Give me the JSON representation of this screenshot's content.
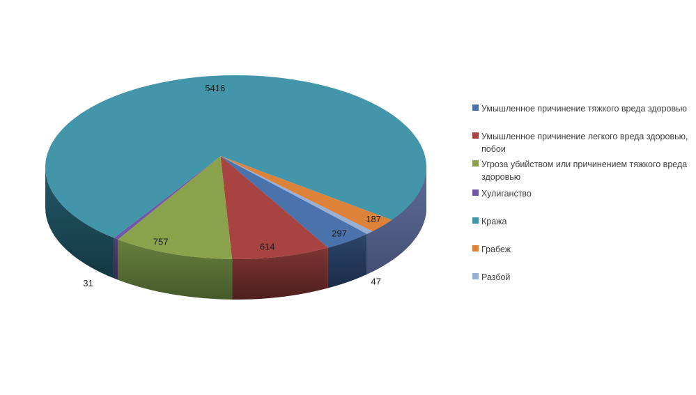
{
  "chart_data": {
    "type": "pie",
    "style": "3d-pie",
    "title": "",
    "legend_position": "right",
    "background_color": "#FFFFFF",
    "data_label_color": "#1A1A1A",
    "legend_text_color": "#3F3F3F",
    "slices": [
      {
        "label": "Умышленное причинение тяжкого вреда здоровью",
        "legend_lines": [
          "Умышленное причинение тяжкого вреда здоровью"
        ],
        "value": 297,
        "color": "#4A72AB",
        "side_top": "#2B4569",
        "side_bottom": "#1B2C49"
      },
      {
        "label": "Умышленное причинение легкого вреда здоровью, побои",
        "legend_lines": [
          "Умышленное причинение легкого вреда здоровью,",
          "побои"
        ],
        "value": 614,
        "color": "#A74441",
        "side_top": "#7E3532",
        "side_bottom": "#4E1F1D"
      },
      {
        "label": "Угроза убийством или причинением тяжкого вреда здоровью",
        "legend_lines": [
          "Угроза убийством или причинением тяжкого вреда",
          "здоровью"
        ],
        "value": 757,
        "color": "#8AA24C",
        "side_top": "#66803C",
        "side_bottom": "#46592A"
      },
      {
        "label": "Хулиганство",
        "legend_lines": [
          "Хулиганство"
        ],
        "value": 31,
        "color": "#6F58A8",
        "side_top": "#4E3F73",
        "side_bottom": "#352A50"
      },
      {
        "label": "Кража",
        "legend_lines": [
          "Кража"
        ],
        "value": 5416,
        "color": "#4396A9",
        "side_top": "#24596A",
        "side_bottom": "#133741"
      },
      {
        "label": "Грабеж",
        "legend_lines": [
          "Грабеж"
        ],
        "value": 187,
        "color": "#DC8239",
        "side_top": "#91511E",
        "side_bottom": "#5F340E"
      },
      {
        "label": "Разбой",
        "legend_lines": [
          "Разбой"
        ],
        "value": 47,
        "color": "#97AFD7",
        "side_top": "#5D6C96",
        "side_bottom": "#454F75"
      }
    ]
  }
}
